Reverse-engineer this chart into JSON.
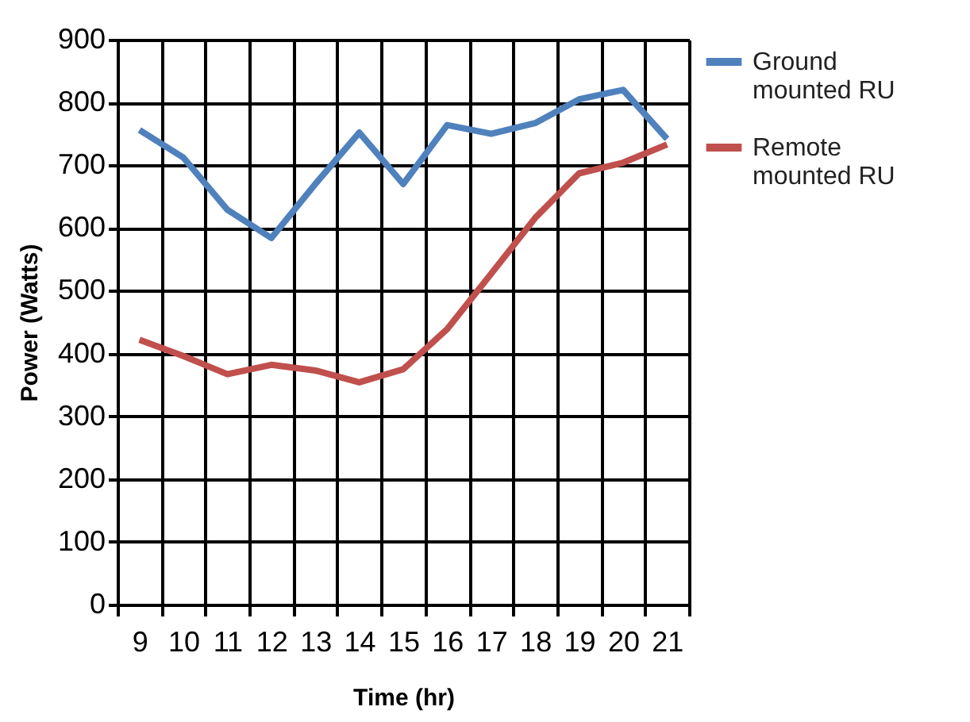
{
  "chart_data": {
    "type": "line",
    "xlabel": "Time (hr)",
    "ylabel": "Power (Watts)",
    "categories": [
      "9",
      "10",
      "11",
      "12",
      "13",
      "14",
      "15",
      "16",
      "17",
      "18",
      "19",
      "20",
      "21"
    ],
    "ylim": [
      0,
      900
    ],
    "yticks": [
      0,
      100,
      200,
      300,
      400,
      500,
      600,
      700,
      800,
      900
    ],
    "grid": true,
    "legend": "right",
    "line_style": "solid",
    "series": [
      {
        "name": "Ground mounted RU",
        "color": "#4f81bd",
        "values": [
          756,
          712,
          629,
          584,
          670,
          752,
          670,
          764,
          750,
          767,
          805,
          820,
          742
        ]
      },
      {
        "name": "Remote mounted RU",
        "color": "#c0504d",
        "values": [
          422,
          396,
          367,
          382,
          373,
          354,
          375,
          439,
          527,
          616,
          687,
          704,
          733
        ]
      }
    ]
  }
}
